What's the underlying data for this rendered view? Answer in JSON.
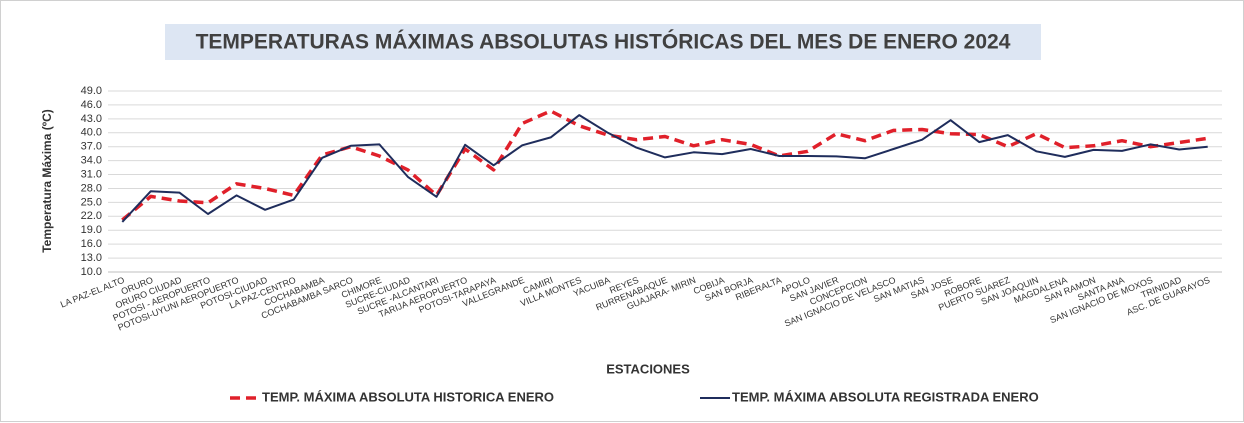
{
  "chart_data": {
    "type": "line",
    "title": "TEMPERATURAS MÁXIMAS ABSOLUTAS HISTÓRICAS DEL MES DE ENERO 2024",
    "x_label": "ESTACIONES",
    "y_label": "Temperatura Máxima (ºC)",
    "categories": [
      "LA PAZ-EL ALTO",
      "ORURO",
      "ORURO  CIUDAD",
      "POTOSI - AEROPUERTO",
      "POTOSI-UYUNI AEROPUERTO",
      "POTOSI-CIUDAD",
      "LA PAZ-CENTRO",
      "COCHABAMBA",
      "COCHABAMBA SARCO",
      "CHIMORE",
      "SUCRE-CIUDAD",
      "SUCRE -ALCANTARI",
      "TARIJA AEROPUERTO",
      "POTOSI-TARAPAYA",
      "VALLEGRANDE",
      "CAMIRI",
      "VILLA MONTES",
      "YACUIBA",
      "REYES",
      "RURRENABAQUE",
      "GUAJARA- MIRIN",
      "COBIJA",
      "SAN BORJA",
      "RIBERALTA",
      "APOLO",
      "SAN JAVIER",
      "CONCEPCION",
      "SAN IGNACIO DE VELASCO",
      "SAN MATIAS",
      "SAN JOSE",
      "ROBORE",
      "PUERTO SUAREZ",
      "SAN JOAQUIN",
      "MAGDALENA",
      "SAN RAMON",
      "SANTA ANA",
      "SAN IGNACIO DE MOXOS",
      "TRINIDAD",
      "ASC. DE GUARAYOS"
    ],
    "series": [
      {
        "name": "TEMP. MÁXIMA ABSOLUTA HISTORICA ENERO",
        "color": "#e0202a",
        "dashed": true,
        "values": [
          21.2,
          26.3,
          25.3,
          24.9,
          29.0,
          28.0,
          26.5,
          35.2,
          37.0,
          35.0,
          32.0,
          26.5,
          36.5,
          32.0,
          42.0,
          44.7,
          41.5,
          39.5,
          38.5,
          39.2,
          37.2,
          38.5,
          37.5,
          35.0,
          36.0,
          39.8,
          38.3,
          40.5,
          40.7,
          39.8,
          39.6,
          37.0,
          39.8,
          36.8,
          37.2,
          38.3,
          37.0,
          37.9,
          38.8
        ]
      },
      {
        "name": "TEMP. MÁXIMA ABSOLUTA REGISTRADA ENERO",
        "color": "#1f2d5c",
        "dashed": false,
        "values": [
          20.8,
          27.4,
          27.1,
          22.5,
          26.5,
          23.4,
          25.6,
          34.6,
          37.2,
          37.5,
          30.5,
          26.2,
          37.4,
          33.0,
          37.3,
          39.0,
          43.8,
          40.0,
          36.8,
          34.7,
          35.8,
          35.4,
          36.5,
          35.0,
          35.0,
          34.9,
          34.5,
          36.5,
          38.5,
          42.7,
          38.0,
          39.5,
          36.0,
          34.8,
          36.3,
          36.1,
          37.5,
          36.4,
          37.0
        ]
      }
    ],
    "ylim": [
      10,
      49
    ],
    "yticks": [
      {
        "value": 10,
        "label": "10.0"
      },
      {
        "value": 13,
        "label": "13.0"
      },
      {
        "value": 16,
        "label": "16.0"
      },
      {
        "value": 19,
        "label": "19.0"
      },
      {
        "value": 22,
        "label": "22.0"
      },
      {
        "value": 25,
        "label": "25.0"
      },
      {
        "value": 28,
        "label": "28.0"
      },
      {
        "value": 31,
        "label": "31.0"
      },
      {
        "value": 34,
        "label": "34.0"
      },
      {
        "value": 37,
        "label": "37.0"
      },
      {
        "value": 40,
        "label": "40.0"
      },
      {
        "value": 43,
        "label": "43.0"
      },
      {
        "value": 46,
        "label": "46.0"
      },
      {
        "value": 49,
        "label": "49.0"
      }
    ],
    "grid": true
  }
}
